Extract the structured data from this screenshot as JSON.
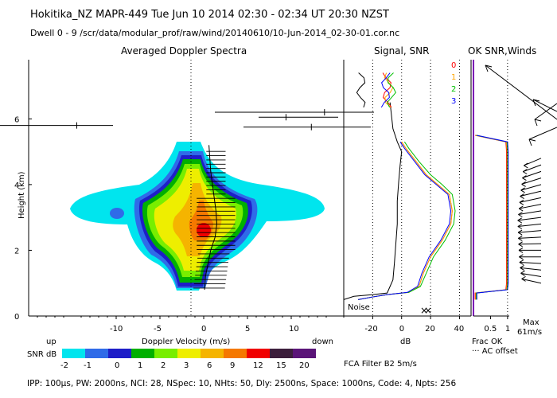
{
  "header": {
    "line1": "Hokitika_NZ   MAPR-449   Tue Jun 10 2014 02:30 - 02:34 UT 20:30 NZST",
    "line2": "Dwell   0 -  9   /scr/data/modular_prof/raw/wind/20140610/10-Jun-2014_02-30-01.cor.nc"
  },
  "panels": {
    "spectra_title": "Averaged Doppler Spectra",
    "signal_title": "Signal, SNR",
    "ok_title": "OK SNR,Winds"
  },
  "snr_legend": {
    "label": "SNR dB",
    "values": [
      "-2",
      "-1",
      "0",
      "1",
      "2",
      "3",
      "6",
      "9",
      "12",
      "15",
      "20"
    ],
    "colors": [
      "#00e5ee",
      "#2f6be8",
      "#1e1ec8",
      "#00b000",
      "#78ee00",
      "#eeee00",
      "#f5b400",
      "#f57800",
      "#f00000",
      "#3c1e3c",
      "#5a1478"
    ]
  },
  "footer": "IPP: 100µs,  PW: 2000ns,  NCI:  28,  NSpec: 10, NHts: 50,  Dly: 2500ns,  Space: 1000ns,  Code: 4,  Npts: 256",
  "filter_label": "FCA Filter B2   5m/s",
  "signal_panel": {
    "noise_label": "Noise",
    "channel_labels": [
      "0",
      "1",
      "2",
      "3"
    ],
    "channel_colors": [
      "#ff0000",
      "#ffa500",
      "#00c000",
      "#0000ff"
    ]
  },
  "ok_panel": {
    "frac_label": "Frac OK",
    "ac_label": "AC offset",
    "max_label": "Max",
    "max_value": "61m/s"
  },
  "chart_data": [
    {
      "type": "heatmap",
      "title": "Averaged Doppler Spectra",
      "xlabel": "Doppler Velocity (m/s)",
      "ylabel": "Height (km)",
      "xlim": [
        -20,
        16
      ],
      "ylim": [
        0,
        7.8
      ],
      "xticks": [
        "-10",
        "-5",
        "0",
        "5",
        "10"
      ],
      "xtick_values": [
        -10,
        -5,
        0,
        5,
        10
      ],
      "yticks": [
        "0",
        "2",
        "4",
        "6"
      ],
      "ytick_values": [
        0,
        2,
        4,
        6
      ],
      "up_label": "up",
      "down_label": "down",
      "peak_velocity_profile": {
        "heights_km": [
          0.8,
          1.2,
          1.6,
          2.0,
          2.4,
          2.8,
          3.2,
          3.6,
          4.0,
          4.4,
          4.8,
          5.2
        ],
        "velocity_ms": [
          0.1,
          0.2,
          0.5,
          0.8,
          1.3,
          1.5,
          1.4,
          1.2,
          1.0,
          0.8,
          0.7,
          0.6
        ]
      },
      "off_scale_marks": [
        {
          "height_km": 5.8,
          "velocity_ms": -14.5
        },
        {
          "height_km": 6.2,
          "velocity_ms": 13.8
        },
        {
          "height_km": 6.05,
          "velocity_ms": 9.4
        },
        {
          "height_km": 5.75,
          "velocity_ms": 12.3
        }
      ]
    },
    {
      "type": "line",
      "title": "Signal, SNR",
      "xlabel": "dB",
      "xlim": [
        -40,
        48
      ],
      "ylim": [
        0,
        7.8
      ],
      "xticks": [
        "-20",
        "0",
        "20",
        "40"
      ],
      "xtick_values": [
        -20,
        0,
        20,
        40
      ],
      "series": [
        {
          "name": "Noise",
          "x": [
            -40,
            -33,
            -20,
            -10,
            -6,
            -5,
            -4,
            -3,
            -3,
            -2,
            -1,
            0,
            -3,
            -6,
            -8
          ],
          "y": [
            0.5,
            0.6,
            0.65,
            0.7,
            1.1,
            1.6,
            2.2,
            2.8,
            3.5,
            4.1,
            4.6,
            5.0,
            5.3,
            5.7,
            6.5
          ]
        },
        {
          "name": "0",
          "x": [
            -30,
            -20,
            -10,
            5,
            12,
            15,
            20,
            28,
            34,
            35,
            33,
            25,
            17,
            10,
            3,
            0
          ],
          "y": [
            0.5,
            0.58,
            0.65,
            0.72,
            0.9,
            1.3,
            1.8,
            2.3,
            2.8,
            3.2,
            3.7,
            4.0,
            4.3,
            4.7,
            5.1,
            5.3
          ]
        },
        {
          "name": "1",
          "x": [
            -30,
            -20,
            -10,
            5,
            12,
            15,
            20,
            28,
            34,
            35,
            33,
            25,
            17,
            10,
            3,
            0
          ],
          "y": [
            0.5,
            0.58,
            0.65,
            0.72,
            0.9,
            1.3,
            1.8,
            2.3,
            2.8,
            3.2,
            3.7,
            4.0,
            4.3,
            4.7,
            5.1,
            5.3
          ]
        },
        {
          "name": "2",
          "x": [
            -30,
            -20,
            -10,
            5,
            13,
            17,
            22,
            30,
            36,
            37,
            35,
            28,
            20,
            12,
            5,
            2
          ],
          "y": [
            0.5,
            0.58,
            0.65,
            0.72,
            0.9,
            1.3,
            1.8,
            2.3,
            2.8,
            3.2,
            3.7,
            4.0,
            4.3,
            4.7,
            5.1,
            5.3
          ]
        },
        {
          "name": "3",
          "x": [
            -30,
            -20,
            -10,
            4,
            11,
            14,
            19,
            27,
            33,
            34,
            32,
            24,
            16,
            9,
            2,
            -1
          ],
          "y": [
            0.5,
            0.58,
            0.65,
            0.72,
            0.9,
            1.3,
            1.8,
            2.3,
            2.8,
            3.2,
            3.7,
            4.0,
            4.3,
            4.7,
            5.1,
            5.3
          ]
        }
      ]
    },
    {
      "type": "line",
      "title": "OK SNR,Winds",
      "xlim": [
        0,
        1.05
      ],
      "xticks": [
        "0.5",
        "1"
      ],
      "xtick_values": [
        0.5,
        1
      ],
      "series": [
        {
          "name": "Frac OK",
          "x": [
            0.05,
            0.05,
            0.95,
            0.97,
            0.97,
            0.95,
            0.05
          ],
          "y": [
            0.5,
            0.7,
            0.8,
            1.0,
            5.0,
            5.3,
            5.5
          ]
        }
      ],
      "wind_barbs_heights_km": [
        1.0,
        1.2,
        1.4,
        1.6,
        1.8,
        2.0,
        2.2,
        2.4,
        2.6,
        2.8,
        3.0,
        3.2,
        3.4,
        3.6,
        3.8,
        4.0,
        4.2,
        4.4,
        4.6,
        4.8
      ],
      "wind_dir_deg": [
        290,
        285,
        280,
        275,
        270,
        270,
        268,
        265,
        262,
        260,
        258,
        255,
        252,
        250,
        248,
        245,
        242,
        240,
        238,
        235
      ]
    }
  ]
}
